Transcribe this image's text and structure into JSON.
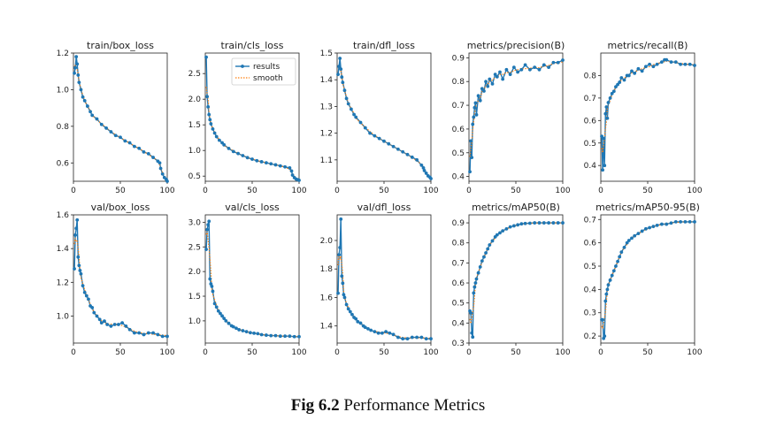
{
  "figure_caption": {
    "label": "Fig 6.2",
    "text": "Performance Metrics"
  },
  "colors": {
    "results": "#1f77b4",
    "smooth": "#ff7f0e"
  },
  "chart_data": [
    {
      "type": "line",
      "title": "train/box_loss",
      "xlim": [
        0,
        100
      ],
      "ylim": [
        0.5,
        1.2
      ],
      "xticks": [
        0,
        50,
        100
      ],
      "yticks": [
        0.6,
        0.8,
        1.0,
        1.2
      ],
      "ytick_labels": [
        "0.6",
        "0.8",
        "1.0",
        "1.2"
      ],
      "x": [
        1,
        2,
        3,
        4,
        5,
        6,
        8,
        10,
        12,
        15,
        18,
        20,
        25,
        30,
        35,
        40,
        45,
        50,
        55,
        60,
        65,
        70,
        75,
        80,
        85,
        90,
        92,
        93,
        95,
        97,
        99,
        100
      ],
      "y": [
        1.09,
        1.12,
        1.18,
        1.14,
        1.08,
        1.04,
        1.0,
        0.96,
        0.94,
        0.91,
        0.88,
        0.86,
        0.84,
        0.81,
        0.79,
        0.77,
        0.75,
        0.74,
        0.72,
        0.71,
        0.69,
        0.68,
        0.66,
        0.65,
        0.63,
        0.61,
        0.6,
        0.57,
        0.54,
        0.52,
        0.51,
        0.5
      ]
    },
    {
      "type": "line",
      "title": "train/cls_loss",
      "xlim": [
        0,
        100
      ],
      "ylim": [
        0.4,
        2.9
      ],
      "xticks": [
        0,
        50,
        100
      ],
      "yticks": [
        0.5,
        1.0,
        1.5,
        2.0,
        2.5
      ],
      "ytick_labels": [
        "0.5",
        "1.0",
        "1.5",
        "2.0",
        "2.5"
      ],
      "legend": [
        "results",
        "smooth"
      ],
      "x": [
        1,
        2,
        3,
        4,
        5,
        6,
        8,
        10,
        12,
        15,
        18,
        20,
        25,
        30,
        35,
        40,
        45,
        50,
        55,
        60,
        65,
        70,
        75,
        80,
        85,
        90,
        92,
        93,
        95,
        97,
        99,
        100
      ],
      "y": [
        2.82,
        2.05,
        1.85,
        1.7,
        1.6,
        1.52,
        1.42,
        1.34,
        1.27,
        1.2,
        1.15,
        1.11,
        1.04,
        0.98,
        0.94,
        0.9,
        0.86,
        0.83,
        0.8,
        0.78,
        0.76,
        0.74,
        0.72,
        0.7,
        0.68,
        0.66,
        0.6,
        0.52,
        0.47,
        0.44,
        0.43,
        0.42
      ]
    },
    {
      "type": "line",
      "title": "train/dfl_loss",
      "xlim": [
        0,
        100
      ],
      "ylim": [
        1.02,
        1.5
      ],
      "xticks": [
        0,
        50,
        100
      ],
      "yticks": [
        1.1,
        1.2,
        1.3,
        1.4,
        1.5
      ],
      "ytick_labels": [
        "1.1",
        "1.2",
        "1.3",
        "1.4",
        "1.5"
      ],
      "x": [
        1,
        2,
        3,
        4,
        5,
        6,
        8,
        10,
        12,
        15,
        18,
        20,
        25,
        30,
        35,
        40,
        45,
        50,
        55,
        60,
        65,
        70,
        75,
        80,
        85,
        90,
        92,
        93,
        95,
        97,
        99,
        100
      ],
      "y": [
        1.42,
        1.45,
        1.48,
        1.44,
        1.41,
        1.39,
        1.36,
        1.33,
        1.31,
        1.29,
        1.27,
        1.26,
        1.24,
        1.22,
        1.2,
        1.19,
        1.18,
        1.17,
        1.16,
        1.15,
        1.14,
        1.13,
        1.12,
        1.11,
        1.1,
        1.08,
        1.07,
        1.06,
        1.05,
        1.04,
        1.035,
        1.03
      ]
    },
    {
      "type": "line",
      "title": "metrics/precision(B)",
      "xlim": [
        0,
        100
      ],
      "ylim": [
        0.38,
        0.92
      ],
      "xticks": [
        0,
        50,
        100
      ],
      "yticks": [
        0.4,
        0.5,
        0.6,
        0.7,
        0.8,
        0.9
      ],
      "ytick_labels": [
        "0.4",
        "0.5",
        "0.6",
        "0.7",
        "0.8",
        "0.9"
      ],
      "x": [
        1,
        2,
        3,
        4,
        5,
        6,
        7,
        8,
        10,
        12,
        14,
        16,
        18,
        20,
        22,
        25,
        28,
        30,
        33,
        36,
        40,
        44,
        48,
        52,
        56,
        60,
        65,
        70,
        75,
        80,
        85,
        90,
        95,
        100
      ],
      "y": [
        0.42,
        0.55,
        0.48,
        0.62,
        0.65,
        0.69,
        0.71,
        0.66,
        0.74,
        0.72,
        0.77,
        0.76,
        0.8,
        0.78,
        0.81,
        0.79,
        0.83,
        0.82,
        0.84,
        0.81,
        0.85,
        0.83,
        0.86,
        0.84,
        0.85,
        0.87,
        0.85,
        0.86,
        0.85,
        0.87,
        0.86,
        0.88,
        0.88,
        0.89
      ]
    },
    {
      "type": "line",
      "title": "metrics/recall(B)",
      "xlim": [
        0,
        100
      ],
      "ylim": [
        0.33,
        0.9
      ],
      "xticks": [
        0,
        50,
        100
      ],
      "yticks": [
        0.4,
        0.5,
        0.6,
        0.7,
        0.8
      ],
      "ytick_labels": [
        "0.4",
        "0.5",
        "0.6",
        "0.7",
        "0.8"
      ],
      "x": [
        1,
        2,
        3,
        4,
        5,
        6,
        7,
        8,
        10,
        12,
        14,
        16,
        18,
        20,
        22,
        25,
        28,
        30,
        33,
        36,
        40,
        44,
        48,
        52,
        56,
        60,
        65,
        68,
        70,
        75,
        80,
        85,
        90,
        95,
        100
      ],
      "y": [
        0.53,
        0.38,
        0.52,
        0.4,
        0.63,
        0.66,
        0.61,
        0.68,
        0.7,
        0.72,
        0.73,
        0.75,
        0.76,
        0.77,
        0.79,
        0.78,
        0.8,
        0.8,
        0.82,
        0.81,
        0.83,
        0.82,
        0.84,
        0.85,
        0.84,
        0.85,
        0.86,
        0.87,
        0.87,
        0.86,
        0.86,
        0.85,
        0.85,
        0.85,
        0.845
      ]
    },
    {
      "type": "line",
      "title": "val/box_loss",
      "xlim": [
        0,
        100
      ],
      "ylim": [
        0.84,
        1.6
      ],
      "xticks": [
        0,
        50,
        100
      ],
      "yticks": [
        1.0,
        1.2,
        1.4,
        1.6
      ],
      "ytick_labels": [
        "1.0",
        "1.2",
        "1.4",
        "1.6"
      ],
      "x": [
        1,
        2,
        3,
        4,
        5,
        6,
        7,
        8,
        10,
        12,
        14,
        16,
        18,
        20,
        22,
        25,
        28,
        30,
        33,
        36,
        40,
        44,
        48,
        52,
        56,
        60,
        65,
        70,
        75,
        80,
        85,
        90,
        95,
        100
      ],
      "y": [
        1.28,
        1.48,
        1.52,
        1.57,
        1.35,
        1.3,
        1.27,
        1.25,
        1.18,
        1.14,
        1.12,
        1.1,
        1.06,
        1.05,
        1.02,
        1.0,
        0.98,
        0.96,
        0.97,
        0.95,
        0.94,
        0.95,
        0.95,
        0.96,
        0.94,
        0.92,
        0.9,
        0.9,
        0.89,
        0.9,
        0.9,
        0.89,
        0.88,
        0.88
      ]
    },
    {
      "type": "line",
      "title": "val/cls_loss",
      "xlim": [
        0,
        100
      ],
      "ylim": [
        0.55,
        3.15
      ],
      "xticks": [
        0,
        50,
        100
      ],
      "yticks": [
        1.0,
        1.5,
        2.0,
        2.5,
        3.0
      ],
      "ytick_labels": [
        "1.0",
        "1.5",
        "2.0",
        "2.5",
        "3.0"
      ],
      "x": [
        1,
        2,
        3,
        4,
        5,
        6,
        7,
        8,
        10,
        12,
        14,
        16,
        18,
        20,
        22,
        25,
        28,
        30,
        33,
        36,
        40,
        44,
        48,
        52,
        56,
        60,
        65,
        70,
        75,
        80,
        85,
        90,
        95,
        100
      ],
      "y": [
        2.45,
        2.85,
        2.95,
        3.02,
        1.85,
        1.75,
        1.7,
        1.6,
        1.35,
        1.28,
        1.2,
        1.15,
        1.1,
        1.05,
        1.0,
        0.95,
        0.9,
        0.88,
        0.85,
        0.82,
        0.8,
        0.78,
        0.76,
        0.75,
        0.74,
        0.72,
        0.71,
        0.7,
        0.7,
        0.69,
        0.69,
        0.69,
        0.68,
        0.68
      ]
    },
    {
      "type": "line",
      "title": "val/dfl_loss",
      "xlim": [
        0,
        100
      ],
      "ylim": [
        1.28,
        2.18
      ],
      "xticks": [
        0,
        50,
        100
      ],
      "yticks": [
        1.4,
        1.6,
        1.8,
        2.0
      ],
      "ytick_labels": [
        "1.4",
        "1.6",
        "1.8",
        "2.0"
      ],
      "x": [
        1,
        2,
        3,
        4,
        5,
        6,
        7,
        8,
        10,
        12,
        14,
        16,
        18,
        20,
        22,
        25,
        28,
        30,
        33,
        36,
        40,
        44,
        48,
        52,
        56,
        60,
        65,
        70,
        75,
        80,
        85,
        90,
        95,
        100
      ],
      "y": [
        1.63,
        1.9,
        1.95,
        2.15,
        1.75,
        1.7,
        1.62,
        1.6,
        1.55,
        1.52,
        1.5,
        1.48,
        1.46,
        1.45,
        1.43,
        1.42,
        1.4,
        1.39,
        1.38,
        1.37,
        1.36,
        1.35,
        1.35,
        1.36,
        1.35,
        1.34,
        1.32,
        1.31,
        1.31,
        1.32,
        1.32,
        1.32,
        1.31,
        1.31
      ]
    },
    {
      "type": "line",
      "title": "metrics/mAP50(B)",
      "xlim": [
        0,
        100
      ],
      "ylim": [
        0.3,
        0.94
      ],
      "xticks": [
        0,
        50,
        100
      ],
      "yticks": [
        0.3,
        0.4,
        0.5,
        0.6,
        0.7,
        0.8,
        0.9
      ],
      "ytick_labels": [
        "0.3",
        "0.4",
        "0.5",
        "0.6",
        "0.7",
        "0.8",
        "0.9"
      ],
      "x": [
        1,
        2,
        3,
        4,
        5,
        6,
        7,
        8,
        10,
        12,
        14,
        16,
        18,
        20,
        22,
        25,
        28,
        30,
        33,
        36,
        40,
        44,
        48,
        52,
        56,
        60,
        65,
        70,
        75,
        80,
        85,
        90,
        95,
        100
      ],
      "y": [
        0.46,
        0.45,
        0.35,
        0.33,
        0.55,
        0.58,
        0.6,
        0.62,
        0.65,
        0.68,
        0.71,
        0.73,
        0.75,
        0.77,
        0.79,
        0.81,
        0.83,
        0.84,
        0.85,
        0.86,
        0.87,
        0.88,
        0.885,
        0.89,
        0.895,
        0.897,
        0.898,
        0.9,
        0.9,
        0.9,
        0.9,
        0.9,
        0.9,
        0.9
      ]
    },
    {
      "type": "line",
      "title": "metrics/mAP50-95(B)",
      "xlim": [
        0,
        100
      ],
      "ylim": [
        0.17,
        0.72
      ],
      "xticks": [
        0,
        50,
        100
      ],
      "yticks": [
        0.2,
        0.3,
        0.4,
        0.5,
        0.6,
        0.7
      ],
      "ytick_labels": [
        "0.2",
        "0.3",
        "0.4",
        "0.5",
        "0.6",
        "0.7"
      ],
      "x": [
        1,
        2,
        3,
        4,
        5,
        6,
        7,
        8,
        10,
        12,
        14,
        16,
        18,
        20,
        22,
        25,
        28,
        30,
        33,
        36,
        40,
        44,
        48,
        52,
        56,
        60,
        65,
        70,
        75,
        80,
        85,
        90,
        95,
        100
      ],
      "y": [
        0.27,
        0.27,
        0.19,
        0.2,
        0.35,
        0.38,
        0.4,
        0.42,
        0.44,
        0.46,
        0.48,
        0.5,
        0.52,
        0.54,
        0.56,
        0.58,
        0.6,
        0.61,
        0.62,
        0.63,
        0.64,
        0.65,
        0.66,
        0.665,
        0.67,
        0.675,
        0.68,
        0.68,
        0.685,
        0.69,
        0.69,
        0.69,
        0.69,
        0.69
      ]
    }
  ]
}
